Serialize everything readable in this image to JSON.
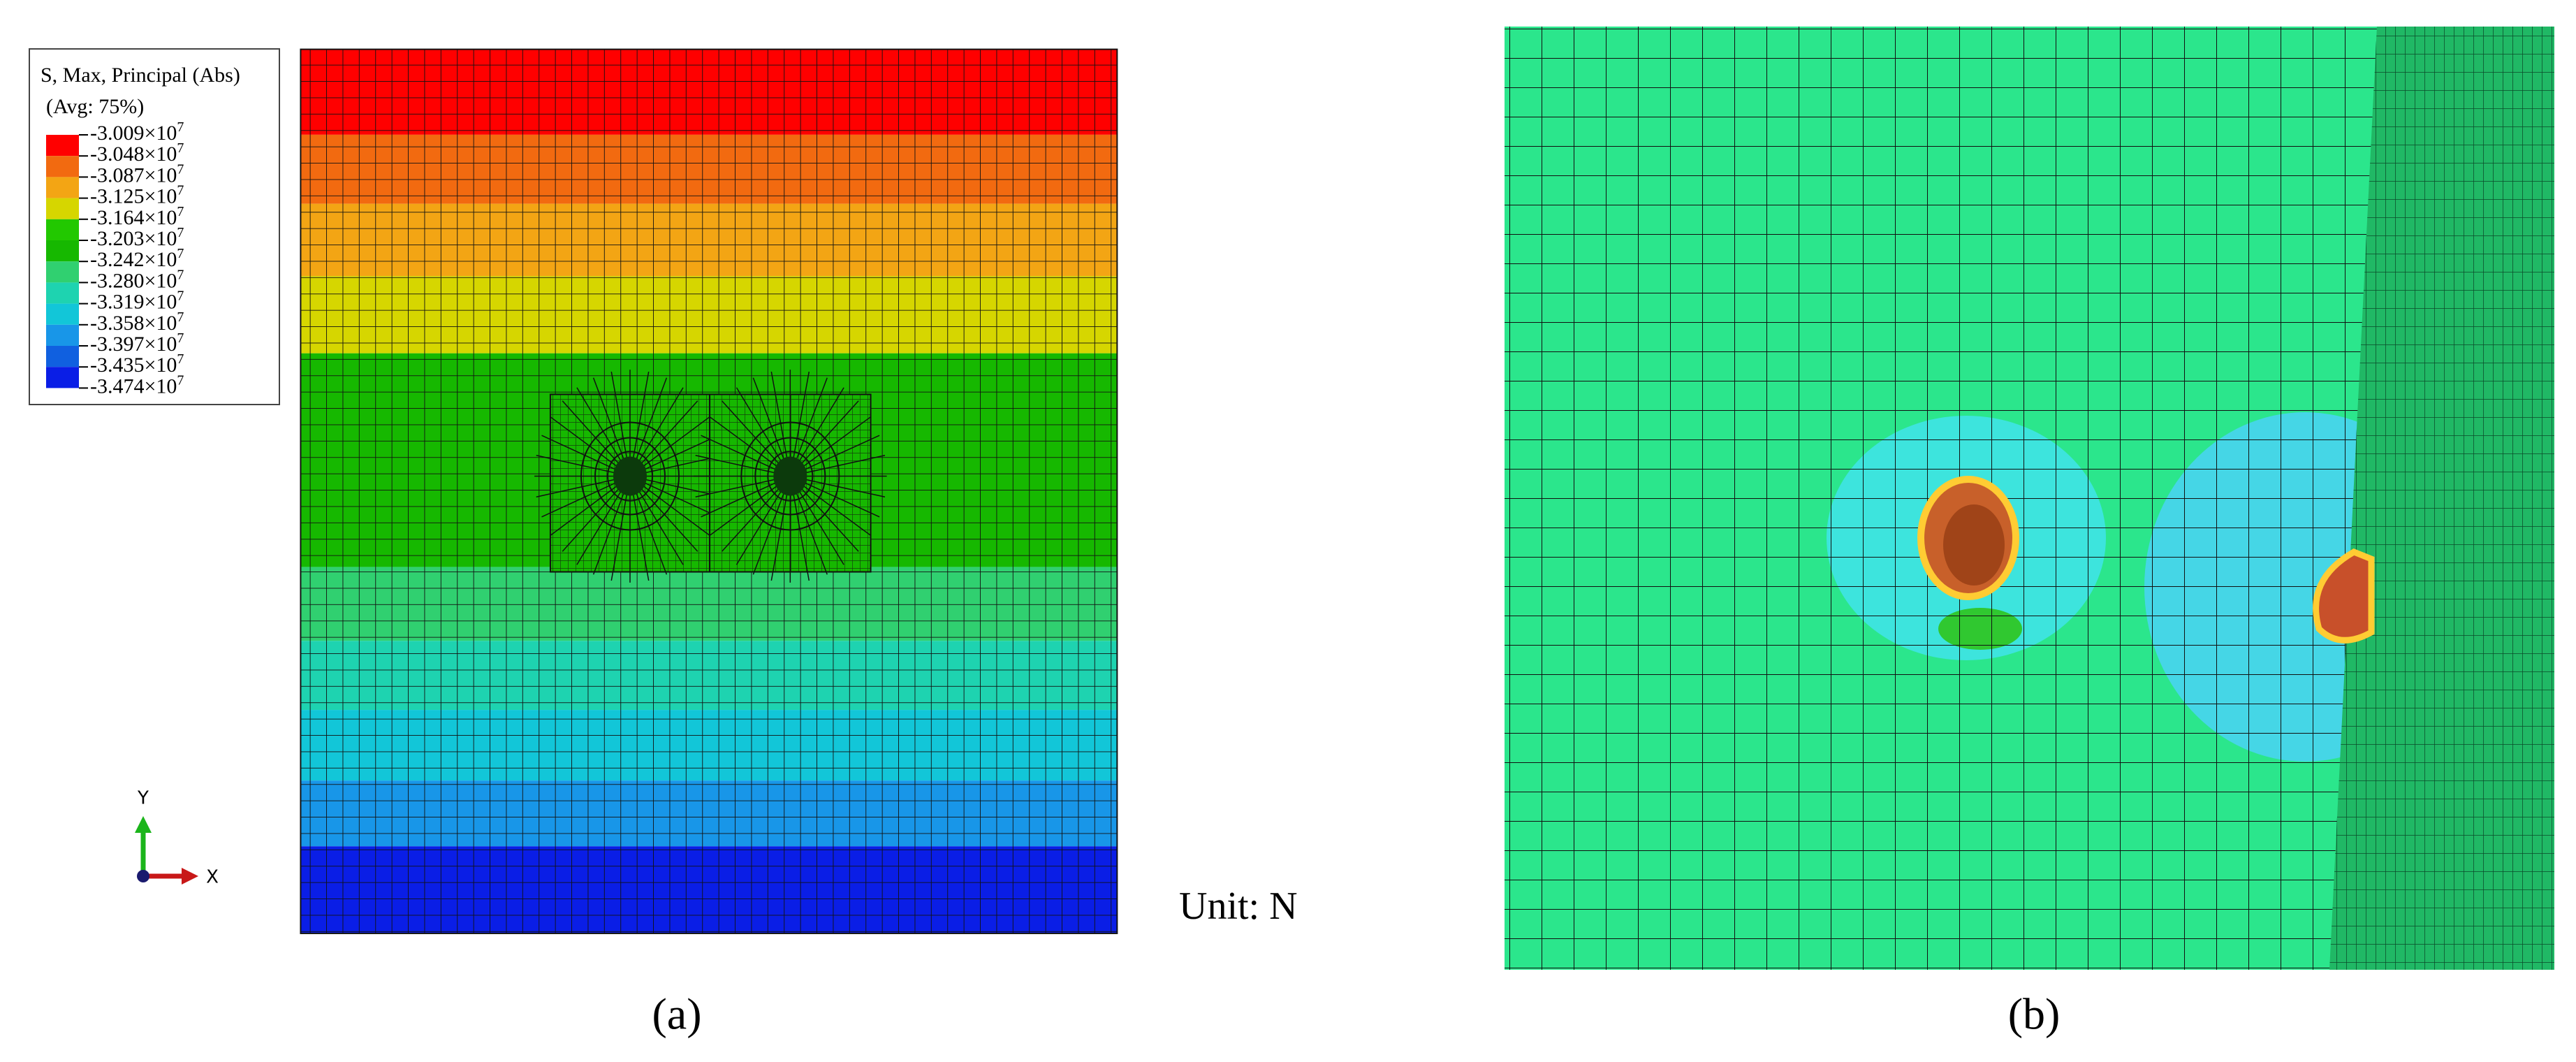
{
  "legend": {
    "title": "S, Max, Principal (Abs)",
    "subtitle": "(Avg: 75%)",
    "colors": [
      "#ff0000",
      "#f26a10",
      "#f3a514",
      "#d6d600",
      "#22c800",
      "#16b800",
      "#30d070",
      "#1ed3b0",
      "#12c6d8",
      "#1896e8",
      "#1060e0",
      "#0a1ee6"
    ],
    "labels": [
      {
        "mantissa": "-3.009×10",
        "exponent": "7"
      },
      {
        "mantissa": "-3.048×10",
        "exponent": "7"
      },
      {
        "mantissa": "-3.087×10",
        "exponent": "7"
      },
      {
        "mantissa": "-3.125×10",
        "exponent": "7"
      },
      {
        "mantissa": "-3.164×10",
        "exponent": "7"
      },
      {
        "mantissa": "-3.203×10",
        "exponent": "7"
      },
      {
        "mantissa": "-3.242×10",
        "exponent": "7"
      },
      {
        "mantissa": "-3.280×10",
        "exponent": "7"
      },
      {
        "mantissa": "-3.319×10",
        "exponent": "7"
      },
      {
        "mantissa": "-3.358×10",
        "exponent": "7"
      },
      {
        "mantissa": "-3.397×10",
        "exponent": "7"
      },
      {
        "mantissa": "-3.435×10",
        "exponent": "7"
      },
      {
        "mantissa": "-3.474×10",
        "exponent": "7"
      }
    ]
  },
  "triad": {
    "y": "Y",
    "x": "X"
  },
  "unit": "Unit: N",
  "captions": [
    "(a)",
    "(b)"
  ]
}
